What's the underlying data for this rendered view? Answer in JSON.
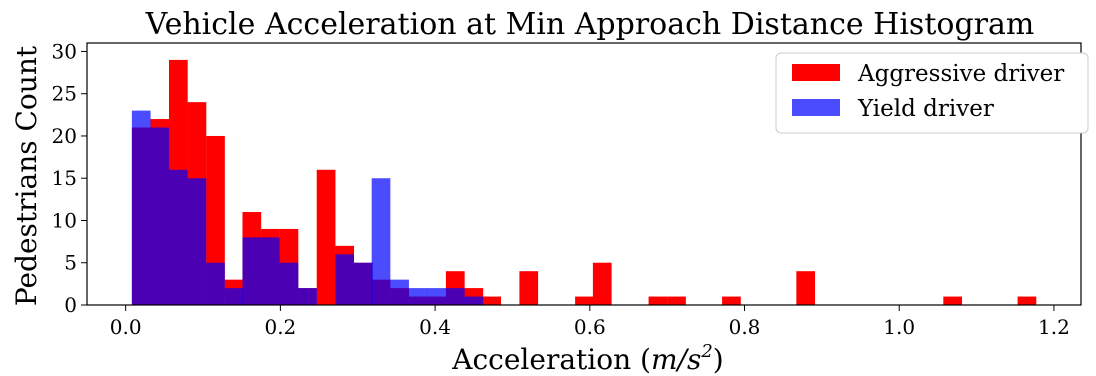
{
  "chart_data": {
    "type": "bar",
    "title": "Vehicle Acceleration at Min Approach Distance Histogram",
    "xlabel": "Acceleration",
    "xlabel_unit_base": "m/s",
    "xlabel_unit_exp": "2",
    "ylabel": "Pedestrians Count",
    "xlim": [
      -0.05,
      1.235
    ],
    "ylim": [
      0,
      31
    ],
    "x_ticks": [
      "0.0",
      "0.2",
      "0.4",
      "0.6",
      "0.8",
      "1.0",
      "1.2"
    ],
    "y_ticks": [
      "0",
      "5",
      "10",
      "15",
      "20",
      "25",
      "30"
    ],
    "grid": false,
    "legend_position": "top-right",
    "bin_width": 0.0238,
    "series": [
      {
        "name": "Aggressive driver",
        "color": "#ff0000",
        "bin_starts": [
          0.008,
          0.032,
          0.056,
          0.08,
          0.104,
          0.128,
          0.151,
          0.175,
          0.199,
          0.223,
          0.247,
          0.271,
          0.295,
          0.318,
          0.342,
          0.366,
          0.39,
          0.414,
          0.438,
          0.461,
          0.485,
          0.509,
          0.533,
          0.557,
          0.581,
          0.604,
          0.628,
          0.652,
          0.676,
          0.7,
          0.724,
          0.748,
          0.771,
          0.795,
          0.819,
          0.843,
          0.867,
          0.891,
          0.914,
          0.938,
          0.962,
          0.986,
          1.01,
          1.034,
          1.057,
          1.081,
          1.105,
          1.129,
          1.153,
          1.177
        ],
        "values": [
          21,
          22,
          29,
          24,
          20,
          3,
          11,
          9,
          9,
          2,
          16,
          7,
          5,
          3,
          2,
          1,
          1,
          4,
          2,
          1,
          0,
          4,
          0,
          0,
          1,
          5,
          0,
          0,
          1,
          1,
          0,
          0,
          1,
          0,
          0,
          0,
          4,
          0,
          0,
          0,
          0,
          0,
          0,
          0,
          1,
          0,
          0,
          0,
          1,
          0
        ]
      },
      {
        "name": "Yield driver",
        "color": "#0000ff",
        "bin_starts": [
          0.008,
          0.032,
          0.056,
          0.08,
          0.104,
          0.128,
          0.151,
          0.175,
          0.199,
          0.223,
          0.247,
          0.271,
          0.295,
          0.318,
          0.342,
          0.366,
          0.39,
          0.414,
          0.438,
          0.461
        ],
        "values": [
          23,
          21,
          16,
          15,
          5,
          2,
          8,
          8,
          5,
          2,
          0,
          6,
          5,
          15,
          3,
          2,
          2,
          2,
          1,
          0
        ]
      }
    ]
  }
}
